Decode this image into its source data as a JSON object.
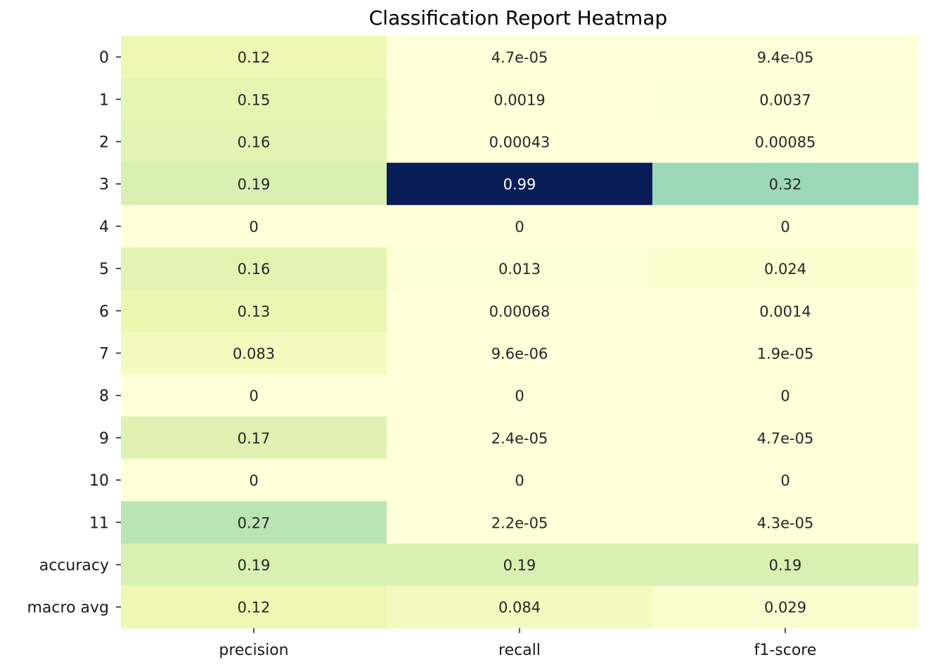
{
  "chart_data": {
    "type": "heatmap",
    "title": "Classification Report Heatmap",
    "xlabel": "",
    "ylabel": "",
    "colormap": "YlGnBu",
    "vmin": 0,
    "vmax": 0.99,
    "colorbar": false,
    "columns": [
      "precision",
      "recall",
      "f1-score"
    ],
    "rows": [
      "0",
      "1",
      "2",
      "3",
      "4",
      "5",
      "6",
      "7",
      "8",
      "9",
      "10",
      "11",
      "accuracy",
      "macro avg"
    ],
    "values": [
      [
        0.12,
        4.7e-05,
        9.4e-05
      ],
      [
        0.15,
        0.0019,
        0.0037
      ],
      [
        0.16,
        0.00043,
        0.00085
      ],
      [
        0.19,
        0.99,
        0.32
      ],
      [
        0,
        0,
        0
      ],
      [
        0.16,
        0.013,
        0.024
      ],
      [
        0.13,
        0.00068,
        0.0014
      ],
      [
        0.083,
        9.6e-06,
        1.9e-05
      ],
      [
        0,
        0,
        0
      ],
      [
        0.17,
        2.4e-05,
        4.7e-05
      ],
      [
        0,
        0,
        0
      ],
      [
        0.27,
        2.2e-05,
        4.3e-05
      ],
      [
        0.19,
        0.19,
        0.19
      ],
      [
        0.12,
        0.084,
        0.029
      ]
    ],
    "labels": [
      [
        "0.12",
        "4.7e-05",
        "9.4e-05"
      ],
      [
        "0.15",
        "0.0019",
        "0.0037"
      ],
      [
        "0.16",
        "0.00043",
        "0.00085"
      ],
      [
        "0.19",
        "0.99",
        "0.32"
      ],
      [
        "0",
        "0",
        "0"
      ],
      [
        "0.16",
        "0.013",
        "0.024"
      ],
      [
        "0.13",
        "0.00068",
        "0.0014"
      ],
      [
        "0.083",
        "9.6e-06",
        "1.9e-05"
      ],
      [
        "0",
        "0",
        "0"
      ],
      [
        "0.17",
        "2.4e-05",
        "4.7e-05"
      ],
      [
        "0",
        "0",
        "0"
      ],
      [
        "0.27",
        "2.2e-05",
        "4.3e-05"
      ],
      [
        "0.19",
        "0.19",
        "0.19"
      ],
      [
        "0.12",
        "0.084",
        "0.029"
      ]
    ]
  }
}
